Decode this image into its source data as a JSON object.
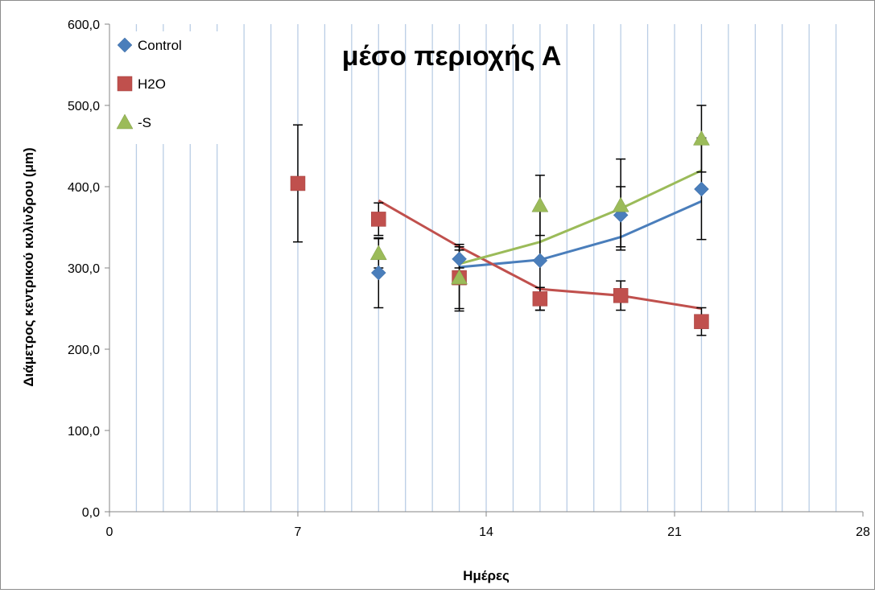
{
  "chart_data": {
    "type": "scatter",
    "title": "μέσο περιοχής Α",
    "xlabel": "Ημέρες",
    "ylabel": "Διάμετρος κεντρικού κυλίνδρου (μm)",
    "xlim": [
      0,
      28
    ],
    "ylim": [
      0,
      600
    ],
    "x_ticks": [
      0,
      7,
      14,
      21,
      28
    ],
    "y_ticks": [
      0,
      100,
      200,
      300,
      400,
      500,
      600
    ],
    "x_tick_labels": [
      "0",
      "7",
      "14",
      "21",
      "28"
    ],
    "y_tick_labels": [
      "0,0",
      "100,0",
      "200,0",
      "300,0",
      "400,0",
      "500,0",
      "600,0"
    ],
    "vertical_gridlines_x": [
      1,
      2,
      3,
      4,
      5,
      6,
      7,
      8,
      9,
      10,
      11,
      12,
      13,
      14,
      15,
      16,
      17,
      18,
      19,
      20,
      21,
      22,
      23,
      24,
      25,
      26,
      27,
      28
    ],
    "legend_position": "top-left",
    "series": [
      {
        "name": "Control",
        "color": "#4a7ebb",
        "marker": "diamond",
        "x": [
          10,
          13,
          16,
          19,
          22
        ],
        "y": [
          294,
          311,
          309,
          365,
          397
        ],
        "err_low": [
          251,
          300,
          248,
          326,
          335
        ],
        "err_high": [
          337,
          322,
          370,
          400,
          460
        ],
        "trend": {
          "x": [
            13,
            16,
            19,
            22
          ],
          "y": [
            301,
            310,
            338,
            382
          ]
        }
      },
      {
        "name": "H2O",
        "color": "#c0504d",
        "marker": "square",
        "x": [
          7,
          10,
          13,
          16,
          19,
          22
        ],
        "y": [
          404,
          360,
          288,
          262,
          266,
          234
        ],
        "err_low": [
          332,
          340,
          247,
          248,
          248,
          217
        ],
        "err_high": [
          476,
          380,
          329,
          276,
          284,
          251
        ],
        "trend": {
          "x": [
            10,
            13,
            16,
            19,
            22
          ],
          "y": [
            383,
            326,
            274,
            266,
            250
          ]
        }
      },
      {
        "name": "-S",
        "color": "#9bbb59",
        "marker": "triangle",
        "x": [
          10,
          13,
          16,
          19,
          22
        ],
        "y": [
          318,
          288,
          377,
          377,
          459
        ],
        "err_low": [
          300,
          250,
          340,
          322,
          418
        ],
        "err_high": [
          336,
          326,
          414,
          434,
          500
        ],
        "trend": {
          "x": [
            13,
            16,
            19,
            22
          ],
          "y": [
            305,
            332,
            373,
            420
          ]
        }
      }
    ]
  }
}
